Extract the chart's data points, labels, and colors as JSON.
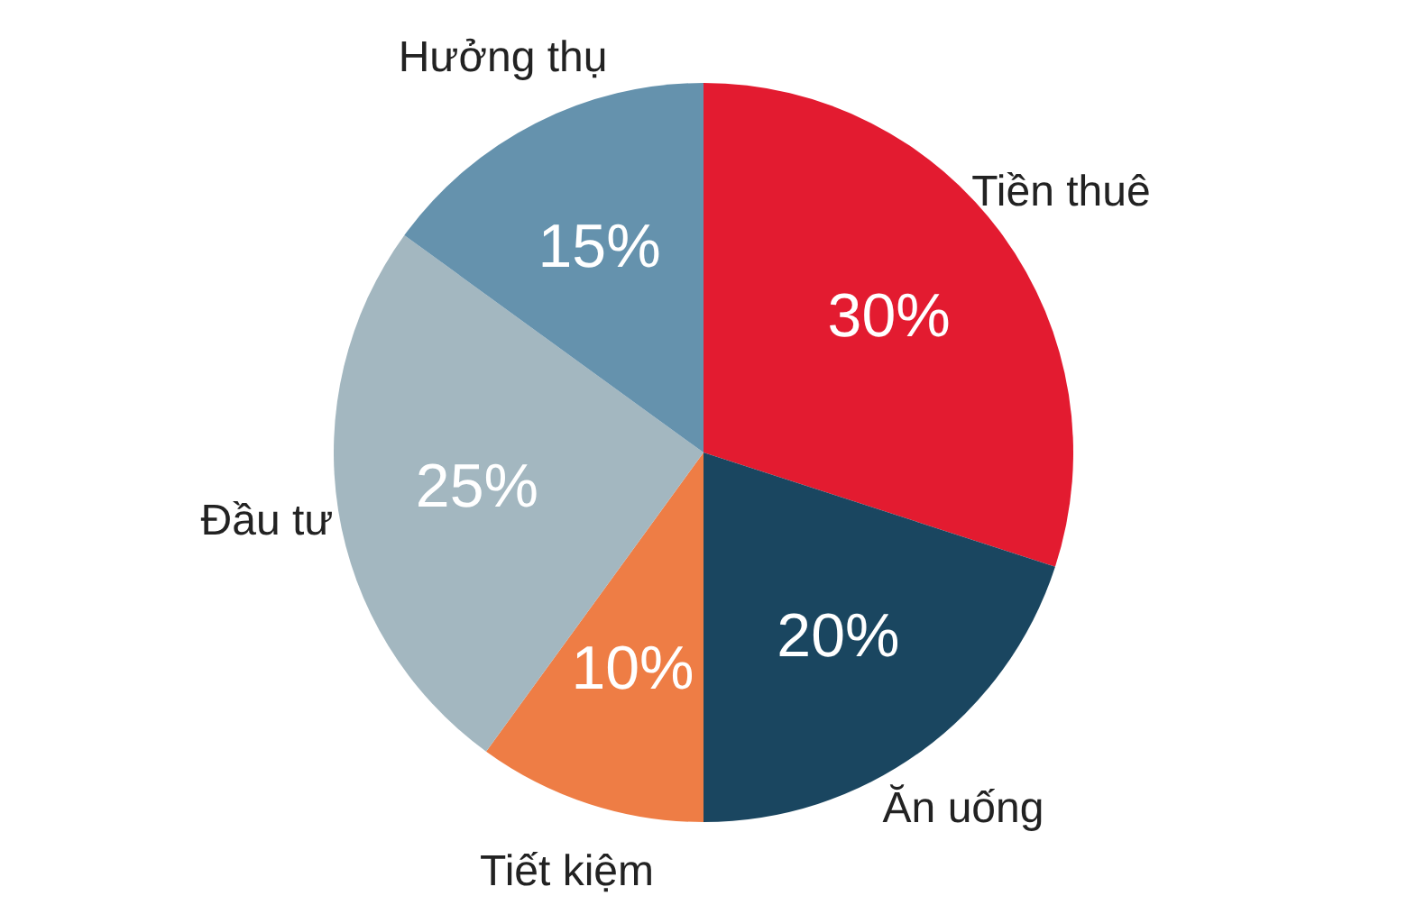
{
  "chart_data": {
    "type": "pie",
    "categories": [
      "Tiền thuê",
      "Ăn uống",
      "Tiết kiệm",
      "Đầu tư",
      "Hưởng thụ"
    ],
    "values": [
      30,
      20,
      10,
      25,
      15
    ],
    "value_labels": [
      "30%",
      "20%",
      "10%",
      "25%",
      "15%"
    ],
    "colors": [
      "#e31b30",
      "#1a4660",
      "#ee7d45",
      "#a3b7c0",
      "#6592ad"
    ]
  }
}
